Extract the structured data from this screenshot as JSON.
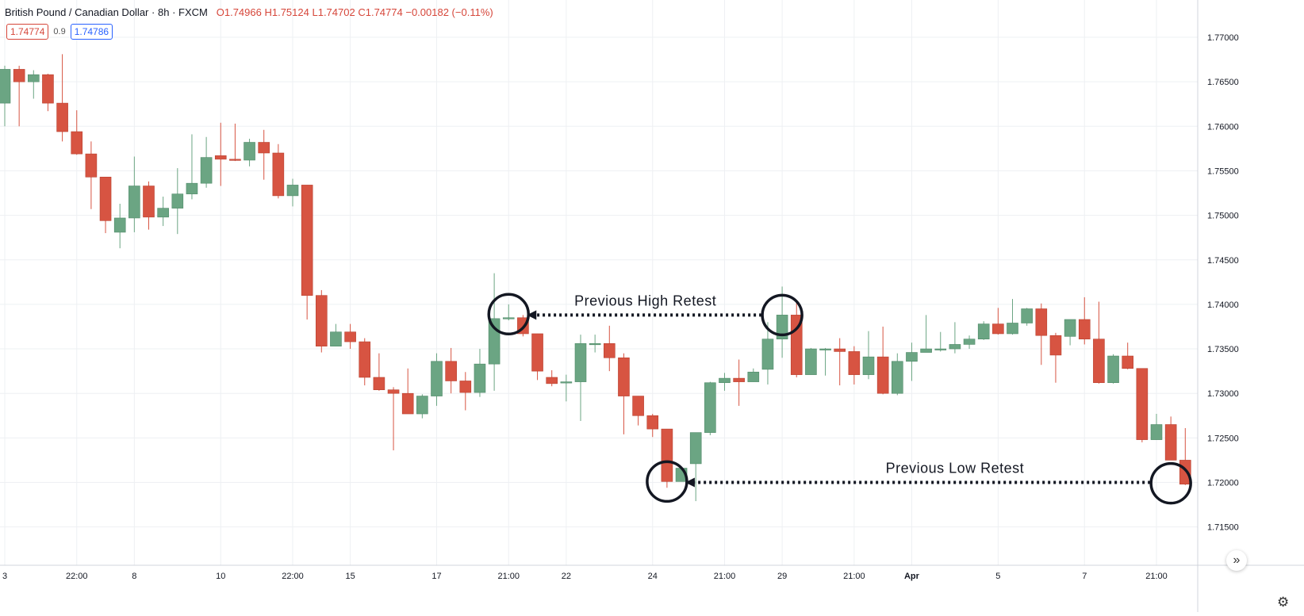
{
  "header": {
    "symbol": "British Pound / Canadian Dollar",
    "interval": "8h",
    "exchange": "FXCM",
    "ohlc": {
      "open": "O1.74966",
      "high": "H1.75124",
      "low": "L1.74702",
      "close": "C1.74774",
      "change": "−0.00182 (−0.11%)"
    },
    "bid_price": "1.74774",
    "spread": "0.9",
    "ask_price": "1.74786",
    "colors": {
      "down": "#d6463a",
      "up": "#2962ff",
      "text": "#131722"
    }
  },
  "controls": {
    "scroll_to_realtime_icon": "double-chevron-right-icon",
    "settings_icon": "gear-icon",
    "scroll_glyph": "»",
    "settings_glyph": "⚙"
  },
  "chart_data": {
    "type": "candlestick",
    "colors": {
      "up": "#6ba583",
      "down": "#d75442",
      "annotation": "#131722"
    },
    "y_axis": {
      "position": "right",
      "ticks": [
        1.77,
        1.765,
        1.76,
        1.755,
        1.75,
        1.745,
        1.74,
        1.735,
        1.73,
        1.725,
        1.72,
        1.715
      ],
      "tick_labels": [
        "1.77000",
        "1.76500",
        "1.76000",
        "1.75500",
        "1.75000",
        "1.74500",
        "1.74000",
        "1.73500",
        "1.73000",
        "1.72500",
        "1.72000",
        "1.71500"
      ]
    },
    "x_axis": {
      "tick_labels": [
        {
          "label": "3",
          "index": 0
        },
        {
          "label": "22:00",
          "index": 5
        },
        {
          "label": "8",
          "index": 9
        },
        {
          "label": "10",
          "index": 15
        },
        {
          "label": "22:00",
          "index": 20
        },
        {
          "label": "15",
          "index": 24
        },
        {
          "label": "17",
          "index": 30
        },
        {
          "label": "21:00",
          "index": 35
        },
        {
          "label": "22",
          "index": 39
        },
        {
          "label": "24",
          "index": 45
        },
        {
          "label": "21:00",
          "index": 50
        },
        {
          "label": "29",
          "index": 54
        },
        {
          "label": "21:00",
          "index": 59
        },
        {
          "label": "Apr",
          "index": 63
        },
        {
          "label": "5",
          "index": 69
        },
        {
          "label": "7",
          "index": 75
        },
        {
          "label": "21:00",
          "index": 80
        }
      ]
    },
    "candles": [
      {
        "o": 1.7626,
        "h": 1.7668,
        "l": 1.76,
        "c": 1.7664
      },
      {
        "o": 1.7664,
        "h": 1.7668,
        "l": 1.76,
        "c": 1.765
      },
      {
        "o": 1.765,
        "h": 1.7663,
        "l": 1.7631,
        "c": 1.7658
      },
      {
        "o": 1.7658,
        "h": 1.7659,
        "l": 1.7617,
        "c": 1.7626
      },
      {
        "o": 1.7626,
        "h": 1.7681,
        "l": 1.7583,
        "c": 1.7594
      },
      {
        "o": 1.7594,
        "h": 1.7618,
        "l": 1.7568,
        "c": 1.7569
      },
      {
        "o": 1.7569,
        "h": 1.7583,
        "l": 1.7507,
        "c": 1.7543
      },
      {
        "o": 1.7543,
        "h": 1.7543,
        "l": 1.748,
        "c": 1.7494
      },
      {
        "o": 1.7481,
        "h": 1.7513,
        "l": 1.7463,
        "c": 1.7497
      },
      {
        "o": 1.7497,
        "h": 1.7566,
        "l": 1.7481,
        "c": 1.7533
      },
      {
        "o": 1.7533,
        "h": 1.7538,
        "l": 1.7484,
        "c": 1.7498
      },
      {
        "o": 1.7498,
        "h": 1.7521,
        "l": 1.7488,
        "c": 1.7508
      },
      {
        "o": 1.7508,
        "h": 1.7553,
        "l": 1.7479,
        "c": 1.7524
      },
      {
        "o": 1.7524,
        "h": 1.7591,
        "l": 1.7518,
        "c": 1.7536
      },
      {
        "o": 1.7536,
        "h": 1.7588,
        "l": 1.7531,
        "c": 1.7565
      },
      {
        "o": 1.7567,
        "h": 1.7604,
        "l": 1.7533,
        "c": 1.7563
      },
      {
        "o": 1.7563,
        "h": 1.7603,
        "l": 1.7561,
        "c": 1.7562
      },
      {
        "o": 1.7562,
        "h": 1.7586,
        "l": 1.7555,
        "c": 1.7582
      },
      {
        "o": 1.7582,
        "h": 1.7596,
        "l": 1.754,
        "c": 1.757
      },
      {
        "o": 1.757,
        "h": 1.758,
        "l": 1.7519,
        "c": 1.7522
      },
      {
        "o": 1.7522,
        "h": 1.7541,
        "l": 1.751,
        "c": 1.7534
      },
      {
        "o": 1.7534,
        "h": 1.7534,
        "l": 1.7383,
        "c": 1.741
      },
      {
        "o": 1.741,
        "h": 1.7416,
        "l": 1.7346,
        "c": 1.7353
      },
      {
        "o": 1.7353,
        "h": 1.7378,
        "l": 1.7353,
        "c": 1.7369
      },
      {
        "o": 1.7369,
        "h": 1.7378,
        "l": 1.735,
        "c": 1.7358
      },
      {
        "o": 1.7358,
        "h": 1.7362,
        "l": 1.7309,
        "c": 1.7318
      },
      {
        "o": 1.7318,
        "h": 1.7345,
        "l": 1.7303,
        "c": 1.7304
      },
      {
        "o": 1.7304,
        "h": 1.7307,
        "l": 1.7236,
        "c": 1.73
      },
      {
        "o": 1.73,
        "h": 1.7328,
        "l": 1.7277,
        "c": 1.7277
      },
      {
        "o": 1.7277,
        "h": 1.7299,
        "l": 1.7272,
        "c": 1.7297
      },
      {
        "o": 1.7297,
        "h": 1.7345,
        "l": 1.7286,
        "c": 1.7336
      },
      {
        "o": 1.7336,
        "h": 1.7351,
        "l": 1.73,
        "c": 1.7314
      },
      {
        "o": 1.7314,
        "h": 1.7324,
        "l": 1.7281,
        "c": 1.7301
      },
      {
        "o": 1.7301,
        "h": 1.735,
        "l": 1.7296,
        "c": 1.7333
      },
      {
        "o": 1.7333,
        "h": 1.7435,
        "l": 1.7303,
        "c": 1.7384
      },
      {
        "o": 1.7384,
        "h": 1.74,
        "l": 1.7382,
        "c": 1.7385
      },
      {
        "o": 1.7385,
        "h": 1.7388,
        "l": 1.7364,
        "c": 1.7367
      },
      {
        "o": 1.7367,
        "h": 1.7367,
        "l": 1.7315,
        "c": 1.7325
      },
      {
        "o": 1.7318,
        "h": 1.7326,
        "l": 1.7308,
        "c": 1.7311
      },
      {
        "o": 1.7313,
        "h": 1.7321,
        "l": 1.7291,
        "c": 1.7313
      },
      {
        "o": 1.7313,
        "h": 1.7366,
        "l": 1.7269,
        "c": 1.7356
      },
      {
        "o": 1.7356,
        "h": 1.7366,
        "l": 1.7346,
        "c": 1.7356
      },
      {
        "o": 1.7356,
        "h": 1.7376,
        "l": 1.7325,
        "c": 1.734
      },
      {
        "o": 1.734,
        "h": 1.7345,
        "l": 1.7254,
        "c": 1.7297
      },
      {
        "o": 1.7297,
        "h": 1.7297,
        "l": 1.7264,
        "c": 1.7275
      },
      {
        "o": 1.7275,
        "h": 1.7277,
        "l": 1.7251,
        "c": 1.726
      },
      {
        "o": 1.726,
        "h": 1.726,
        "l": 1.7194,
        "c": 1.7201
      },
      {
        "o": 1.7201,
        "h": 1.7216,
        "l": 1.7201,
        "c": 1.7216
      },
      {
        "o": 1.7221,
        "h": 1.7256,
        "l": 1.7179,
        "c": 1.7256
      },
      {
        "o": 1.7256,
        "h": 1.7313,
        "l": 1.7253,
        "c": 1.7312
      },
      {
        "o": 1.7312,
        "h": 1.7323,
        "l": 1.7303,
        "c": 1.7317
      },
      {
        "o": 1.7317,
        "h": 1.7338,
        "l": 1.7286,
        "c": 1.7313
      },
      {
        "o": 1.7313,
        "h": 1.7328,
        "l": 1.7313,
        "c": 1.7324
      },
      {
        "o": 1.7327,
        "h": 1.738,
        "l": 1.731,
        "c": 1.7361
      },
      {
        "o": 1.7361,
        "h": 1.742,
        "l": 1.734,
        "c": 1.7388
      },
      {
        "o": 1.7388,
        "h": 1.7404,
        "l": 1.7318,
        "c": 1.7321
      },
      {
        "o": 1.7321,
        "h": 1.7351,
        "l": 1.7321,
        "c": 1.735
      },
      {
        "o": 1.735,
        "h": 1.7351,
        "l": 1.732,
        "c": 1.735
      },
      {
        "o": 1.735,
        "h": 1.7362,
        "l": 1.7309,
        "c": 1.7347
      },
      {
        "o": 1.7347,
        "h": 1.7353,
        "l": 1.731,
        "c": 1.7321
      },
      {
        "o": 1.7321,
        "h": 1.737,
        "l": 1.7316,
        "c": 1.7341
      },
      {
        "o": 1.7341,
        "h": 1.7375,
        "l": 1.7299,
        "c": 1.73
      },
      {
        "o": 1.73,
        "h": 1.7345,
        "l": 1.7298,
        "c": 1.7336
      },
      {
        "o": 1.7336,
        "h": 1.7357,
        "l": 1.7314,
        "c": 1.7346
      },
      {
        "o": 1.7346,
        "h": 1.7388,
        "l": 1.7346,
        "c": 1.735
      },
      {
        "o": 1.735,
        "h": 1.7369,
        "l": 1.7347,
        "c": 1.735
      },
      {
        "o": 1.735,
        "h": 1.738,
        "l": 1.7345,
        "c": 1.7355
      },
      {
        "o": 1.7355,
        "h": 1.7365,
        "l": 1.735,
        "c": 1.7361
      },
      {
        "o": 1.7361,
        "h": 1.7381,
        "l": 1.736,
        "c": 1.7378
      },
      {
        "o": 1.7378,
        "h": 1.7396,
        "l": 1.7366,
        "c": 1.7367
      },
      {
        "o": 1.7367,
        "h": 1.7406,
        "l": 1.7366,
        "c": 1.7379
      },
      {
        "o": 1.7379,
        "h": 1.7396,
        "l": 1.7376,
        "c": 1.7395
      },
      {
        "o": 1.7395,
        "h": 1.7401,
        "l": 1.7332,
        "c": 1.7365
      },
      {
        "o": 1.7365,
        "h": 1.7368,
        "l": 1.7312,
        "c": 1.7343
      },
      {
        "o": 1.7364,
        "h": 1.7383,
        "l": 1.7354,
        "c": 1.7383
      },
      {
        "o": 1.7383,
        "h": 1.7408,
        "l": 1.7355,
        "c": 1.7361
      },
      {
        "o": 1.7361,
        "h": 1.7403,
        "l": 1.7311,
        "c": 1.7312
      },
      {
        "o": 1.7312,
        "h": 1.7344,
        "l": 1.7311,
        "c": 1.7342
      },
      {
        "o": 1.7342,
        "h": 1.7357,
        "l": 1.7327,
        "c": 1.7328
      },
      {
        "o": 1.7328,
        "h": 1.7328,
        "l": 1.7245,
        "c": 1.7248
      },
      {
        "o": 1.7248,
        "h": 1.7277,
        "l": 1.7248,
        "c": 1.7265
      },
      {
        "o": 1.7265,
        "h": 1.7274,
        "l": 1.7225,
        "c": 1.7225
      },
      {
        "o": 1.7225,
        "h": 1.7261,
        "l": 1.7197,
        "c": 1.7198
      }
    ],
    "annotations": [
      {
        "kind": "circle",
        "candle_index": 35,
        "price": 1.7389
      },
      {
        "kind": "circle",
        "candle_index": 54,
        "price": 1.7388
      },
      {
        "kind": "arrow",
        "from_index": 54,
        "to_index": 35,
        "price": 1.7388,
        "text": "Previous High Retest",
        "text_index": 44.5
      },
      {
        "kind": "circle",
        "candle_index": 46,
        "price": 1.7201
      },
      {
        "kind": "circle",
        "candle_index": 81,
        "price": 1.7199
      },
      {
        "kind": "arrow",
        "from_index": 81,
        "to_index": 46,
        "price": 1.72,
        "text": "Previous Low Retest",
        "text_index": 66
      }
    ]
  }
}
